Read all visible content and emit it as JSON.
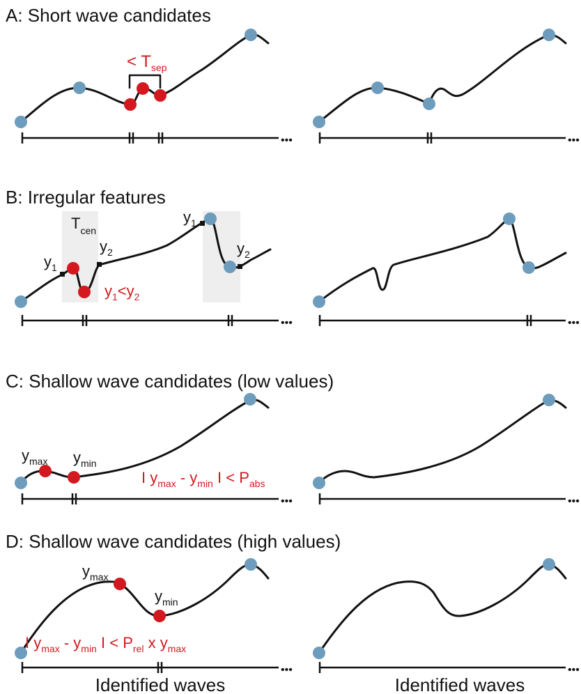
{
  "panels": {
    "a": {
      "title": "A: Short wave candidates",
      "label_lt": "< T",
      "label_sub": "sep"
    },
    "b": {
      "title": "B: Irregular features",
      "t_main": "T",
      "t_sub": "cen",
      "y": "y",
      "sub1": "1",
      "sub2": "2",
      "lt": "<"
    },
    "c": {
      "title": "C: Shallow wave candidates (low values)",
      "y": "y",
      "max": "max",
      "min": "min",
      "eq_bar": "I",
      "eq_minus": "-",
      "eq_lt": "<",
      "eq_p": "P",
      "eq_abs": "abs"
    },
    "d": {
      "title": "D: Shallow wave candidates (high values)",
      "y": "y",
      "max": "max",
      "min": "min",
      "eq_bar": "I",
      "eq_minus": "-",
      "eq_lt": "<",
      "eq_p": "P",
      "eq_rel": "rel",
      "eq_x": "x"
    }
  },
  "footer": {
    "left": "Identified waves",
    "right": "Identified waves"
  },
  "ellipsis": "•••",
  "colors": {
    "marker_blue": "#6d9cbc",
    "marker_red": "#d3191f",
    "ink": "#111111",
    "shade": "#eeeeee"
  }
}
